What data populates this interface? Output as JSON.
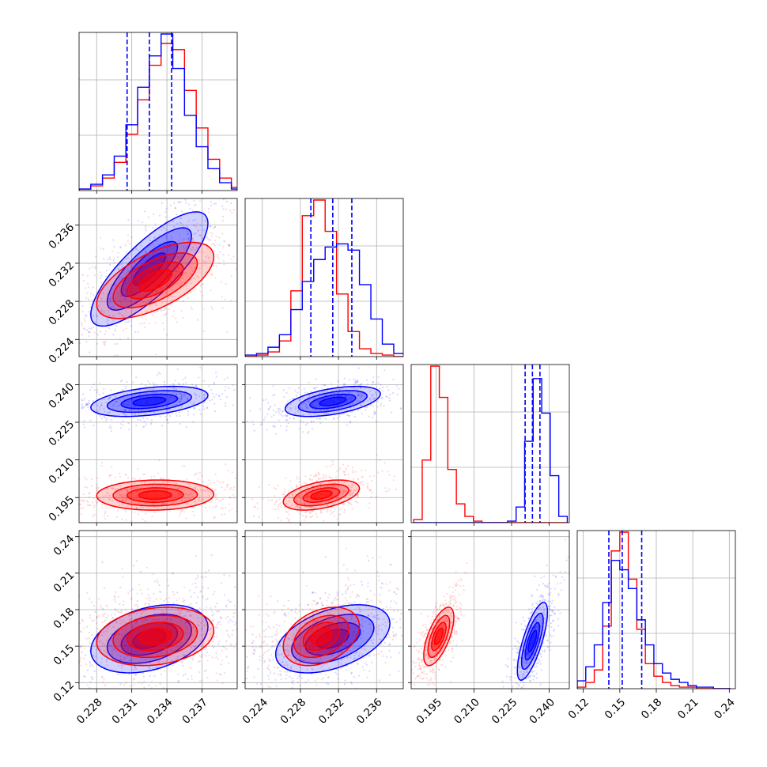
{
  "chart_data": {
    "type": "corner",
    "parameters": 4,
    "grid": true,
    "colors": {
      "series_a": "#0000ff",
      "series_b": "#ff0000",
      "quantile_lines": "#0000ff"
    },
    "series": [
      {
        "color": "#0000ff",
        "kind": "posterior samples"
      },
      {
        "color": "#ff0000",
        "kind": "posterior samples"
      }
    ],
    "axes": [
      {
        "index": 0,
        "range": [
          0.2265,
          0.24
        ],
        "ticks": [
          "0.228",
          "0.231",
          "0.234",
          "0.237"
        ],
        "tick_values": [
          0.228,
          0.231,
          0.234,
          0.237
        ]
      },
      {
        "index": 1,
        "range": [
          0.2222,
          0.2388
        ],
        "ticks": [
          "0.224",
          "0.228",
          "0.232",
          "0.236"
        ],
        "tick_values": [
          0.224,
          0.228,
          0.232,
          0.236
        ]
      },
      {
        "index": 2,
        "range": [
          0.185,
          0.248
        ],
        "ticks": [
          "0.195",
          "0.210",
          "0.225",
          "0.240"
        ],
        "tick_values": [
          0.195,
          0.21,
          0.225,
          0.24
        ]
      },
      {
        "index": 3,
        "range": [
          0.115,
          0.245
        ],
        "ticks": [
          "0.12",
          "0.15",
          "0.18",
          "0.21",
          "0.24"
        ],
        "tick_values": [
          0.12,
          0.15,
          0.18,
          0.21,
          0.24
        ]
      }
    ],
    "quantiles_blue": [
      [
        0.2306,
        0.2325,
        0.2344
      ],
      [
        0.2291,
        0.2314,
        0.2334
      ],
      [
        0.2304,
        0.2333,
        0.2363
      ],
      [
        0.141,
        0.152,
        0.168
      ]
    ],
    "marginals": [
      {
        "param": 0,
        "bins": [
          0.2265,
          0.2275,
          0.2285,
          0.2295,
          0.2305,
          0.2315,
          0.2325,
          0.2335,
          0.2345,
          0.2355,
          0.2365,
          0.2375,
          0.2385,
          0.2395
        ],
        "blue": [
          0.01,
          0.04,
          0.1,
          0.22,
          0.42,
          0.66,
          0.86,
          1.0,
          0.78,
          0.48,
          0.28,
          0.14,
          0.05,
          0.01
        ],
        "red": [
          0.01,
          0.03,
          0.08,
          0.18,
          0.36,
          0.58,
          0.8,
          0.94,
          0.9,
          0.64,
          0.4,
          0.2,
          0.08,
          0.02
        ]
      },
      {
        "param": 1,
        "bins": [
          0.2222,
          0.2234,
          0.2246,
          0.2258,
          0.227,
          0.2282,
          0.2294,
          0.2306,
          0.2318,
          0.233,
          0.2342,
          0.2354,
          0.2366,
          0.2378
        ],
        "blue": [
          0.01,
          0.02,
          0.06,
          0.14,
          0.3,
          0.48,
          0.62,
          0.7,
          0.72,
          0.68,
          0.46,
          0.24,
          0.08,
          0.02
        ],
        "red": [
          0.0,
          0.01,
          0.03,
          0.1,
          0.42,
          0.9,
          1.0,
          0.8,
          0.4,
          0.16,
          0.05,
          0.02,
          0.01,
          0.0
        ]
      },
      {
        "param": 2,
        "bins": [
          0.186,
          0.1894,
          0.1928,
          0.1962,
          0.1996,
          0.203,
          0.2064,
          0.2098,
          0.2132,
          0.2166,
          0.22,
          0.2234,
          0.2268,
          0.2302,
          0.2336,
          0.237,
          0.2404,
          0.2438
        ],
        "blue": [
          0,
          0,
          0,
          0,
          0,
          0,
          0,
          0,
          0,
          0,
          0,
          0.01,
          0.1,
          0.52,
          0.92,
          0.7,
          0.3,
          0.04
        ],
        "red": [
          0.02,
          0.4,
          1.0,
          0.8,
          0.34,
          0.12,
          0.04,
          0.01,
          0,
          0,
          0,
          0,
          0,
          0,
          0,
          0,
          0,
          0
        ]
      },
      {
        "param": 3,
        "bins": [
          0.115,
          0.122,
          0.129,
          0.136,
          0.143,
          0.15,
          0.157,
          0.164,
          0.171,
          0.178,
          0.185,
          0.192,
          0.199,
          0.206,
          0.213,
          0.22,
          0.227,
          0.234
        ],
        "blue": [
          0.05,
          0.14,
          0.28,
          0.55,
          0.82,
          0.76,
          0.64,
          0.44,
          0.28,
          0.16,
          0.1,
          0.06,
          0.04,
          0.02,
          0.01,
          0.01,
          0,
          0
        ],
        "red": [
          0.01,
          0.04,
          0.12,
          0.4,
          0.88,
          1.0,
          0.7,
          0.38,
          0.16,
          0.08,
          0.04,
          0.02,
          0.01,
          0.01,
          0,
          0,
          0,
          0
        ]
      }
    ],
    "contour_levels": [
      1.0,
      0.72,
      0.48,
      0.28
    ],
    "joint_blue": [
      {
        "row": 1,
        "col": 0,
        "mean": [
          0.2325,
          0.2314
        ],
        "sd": [
          0.0025,
          0.003
        ],
        "corr": 0.8,
        "n": 500,
        "spread": 1.8
      },
      {
        "row": 2,
        "col": 0,
        "mean": [
          0.2325,
          0.2333
        ],
        "sd": [
          0.0025,
          0.003
        ],
        "corr": 0.4,
        "n": 500,
        "spread": 1.6
      },
      {
        "row": 2,
        "col": 1,
        "mean": [
          0.2314,
          0.2333
        ],
        "sd": [
          0.0025,
          0.003
        ],
        "corr": 0.5,
        "n": 500,
        "spread": 1.6
      },
      {
        "row": 2,
        "col": 3,
        "mean": [
          0.0,
          0.0
        ],
        "sd": [
          1,
          1
        ],
        "corr": 0.0,
        "n": 0,
        "spread": 0
      },
      {
        "row": 3,
        "col": 0,
        "mean": [
          0.2325,
          0.156
        ],
        "sd": [
          0.0025,
          0.014
        ],
        "corr": 0.35,
        "n": 500,
        "spread": 1.8
      },
      {
        "row": 3,
        "col": 1,
        "mean": [
          0.2314,
          0.156
        ],
        "sd": [
          0.003,
          0.014
        ],
        "corr": 0.45,
        "n": 500,
        "spread": 1.8
      },
      {
        "row": 3,
        "col": 2,
        "mean": [
          0.2333,
          0.154
        ],
        "sd": [
          0.003,
          0.016
        ],
        "corr": 0.75,
        "n": 500,
        "spread": 1.6
      }
    ],
    "joint_red": [
      {
        "row": 1,
        "col": 0,
        "mean": [
          0.233,
          0.2302
        ],
        "sd": [
          0.0025,
          0.002
        ],
        "corr": 0.62,
        "n": 500,
        "spread": 1.8
      },
      {
        "row": 2,
        "col": 0,
        "mean": [
          0.233,
          0.196
        ],
        "sd": [
          0.0025,
          0.003
        ],
        "corr": 0.05,
        "n": 500,
        "spread": 1.6
      },
      {
        "row": 2,
        "col": 1,
        "mean": [
          0.2302,
          0.196
        ],
        "sd": [
          0.002,
          0.003
        ],
        "corr": 0.45,
        "n": 500,
        "spread": 1.6
      },
      {
        "row": 3,
        "col": 0,
        "mean": [
          0.233,
          0.158
        ],
        "sd": [
          0.0025,
          0.012
        ],
        "corr": 0.2,
        "n": 500,
        "spread": 1.8
      },
      {
        "row": 3,
        "col": 1,
        "mean": [
          0.2302,
          0.158
        ],
        "sd": [
          0.002,
          0.012
        ],
        "corr": 0.35,
        "n": 500,
        "spread": 1.8
      },
      {
        "row": 3,
        "col": 2,
        "mean": [
          0.196,
          0.158
        ],
        "sd": [
          0.003,
          0.012
        ],
        "corr": 0.65,
        "n": 500,
        "spread": 1.6
      }
    ]
  }
}
